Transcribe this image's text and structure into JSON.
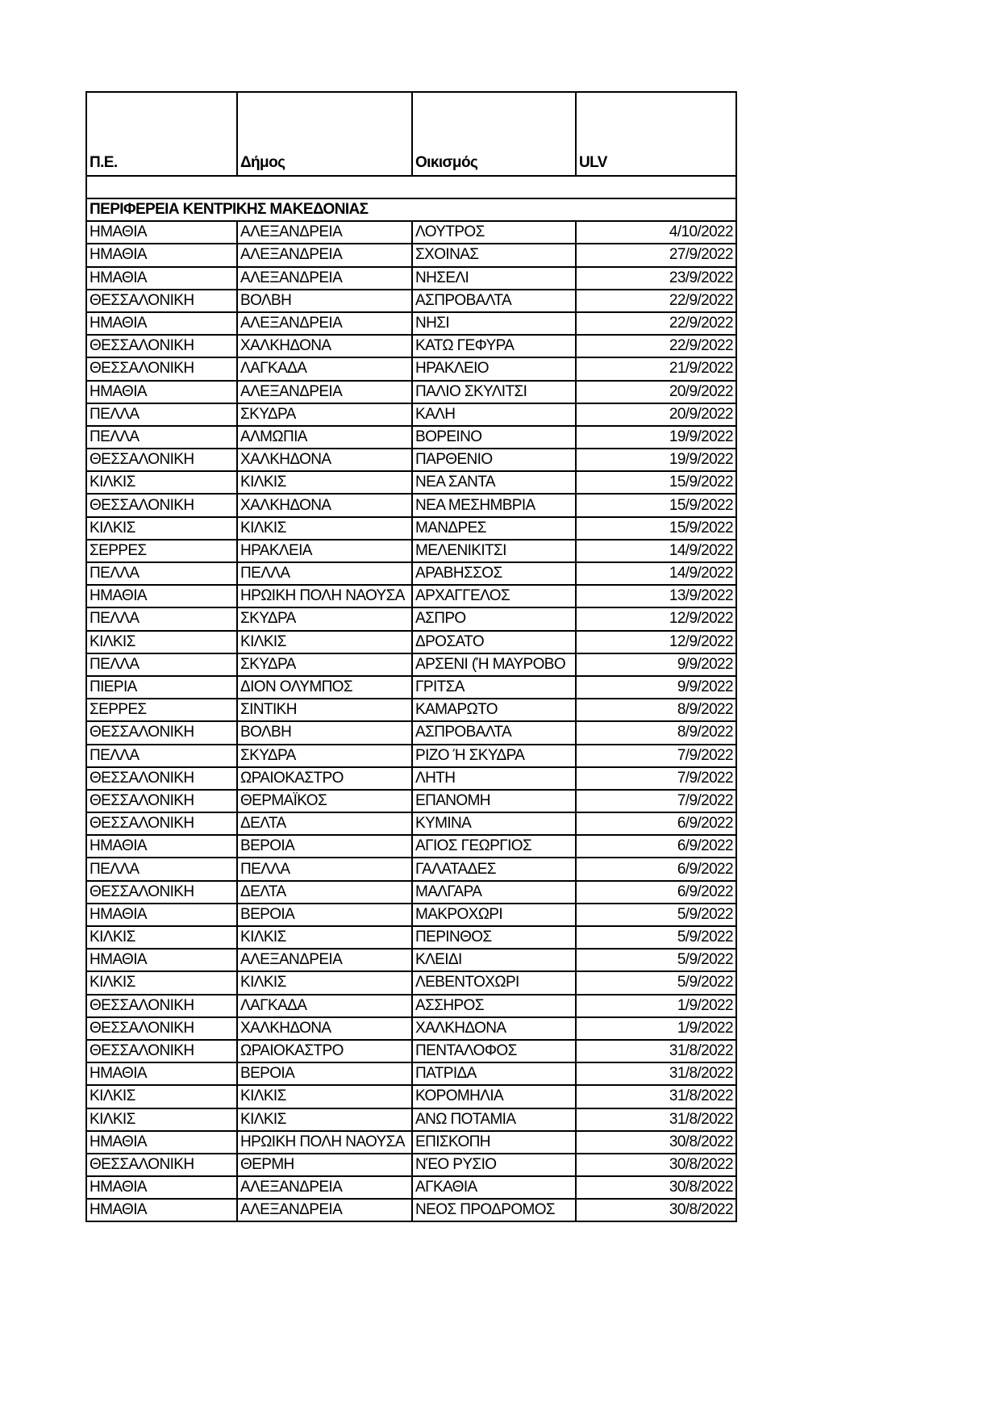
{
  "headers": [
    "Π.Ε.",
    "Δήμος",
    "Οικισμός",
    "ULV"
  ],
  "region": "ΠΕΡΙΦΕΡΕΙΑ ΚΕΝΤΡΙΚΗΣ ΜΑΚΕΔΟΝΙΑΣ",
  "rows": [
    [
      "ΗΜΑΘΙΑ",
      "ΑΛΕΞΑΝΔΡΕΙΑ",
      "ΛΟΥΤΡΟΣ",
      "4/10/2022"
    ],
    [
      "ΗΜΑΘΙΑ",
      "ΑΛΕΞΑΝΔΡΕΙΑ",
      "ΣΧΟΙΝΑΣ",
      "27/9/2022"
    ],
    [
      "ΗΜΑΘΙΑ",
      "ΑΛΕΞΑΝΔΡΕΙΑ",
      "ΝΗΣΕΛΙ",
      "23/9/2022"
    ],
    [
      "ΘΕΣΣΑΛΟΝΙΚΗ",
      "ΒΟΛΒΗ",
      "ΑΣΠΡΟΒΑΛΤΑ",
      "22/9/2022"
    ],
    [
      "ΗΜΑΘΙΑ",
      "ΑΛΕΞΑΝΔΡΕΙΑ",
      "ΝΗΣΙ",
      "22/9/2022"
    ],
    [
      "ΘΕΣΣΑΛΟΝΙΚΗ",
      "ΧΑΛΚΗΔΟΝΑ",
      "ΚΑΤΩ ΓΕΦΥΡΑ",
      "22/9/2022"
    ],
    [
      "ΘΕΣΣΑΛΟΝΙΚΗ",
      "ΛΑΓΚΑΔΑ",
      "ΗΡΑΚΛΕΙΟ",
      "21/9/2022"
    ],
    [
      "ΗΜΑΘΙΑ",
      "ΑΛΕΞΑΝΔΡΕΙΑ",
      "ΠΑΛΙΟ ΣΚΥΛΙΤΣΙ",
      "20/9/2022"
    ],
    [
      "ΠΕΛΛΑ",
      "ΣΚΥΔΡΑ",
      "ΚΑΛΗ",
      "20/9/2022"
    ],
    [
      "ΠΕΛΛΑ",
      "ΑΛΜΩΠΙΑ",
      "ΒΟΡΕΙΝΟ",
      "19/9/2022"
    ],
    [
      "ΘΕΣΣΑΛΟΝΙΚΗ",
      "ΧΑΛΚΗΔΟΝΑ",
      "ΠΑΡΘΕΝΙΟ",
      "19/9/2022"
    ],
    [
      "ΚΙΛΚΙΣ",
      "ΚΙΛΚΙΣ",
      "ΝΕΑ ΣΑΝΤΑ",
      "15/9/2022"
    ],
    [
      "ΘΕΣΣΑΛΟΝΙΚΗ",
      "ΧΑΛΚΗΔΟΝΑ",
      "ΝΕΑ ΜΕΣΗΜΒΡΙΑ",
      "15/9/2022"
    ],
    [
      "ΚΙΛΚΙΣ",
      "ΚΙΛΚΙΣ",
      "ΜΑΝΔΡΕΣ",
      "15/9/2022"
    ],
    [
      "ΣΕΡΡΕΣ",
      "ΗΡΑΚΛΕΙΑ",
      "ΜΕΛΕΝΙΚΙΤΣΙ",
      "14/9/2022"
    ],
    [
      "ΠΕΛΛΑ",
      "ΠΕΛΛΑ",
      "ΑΡΑΒΗΣΣΟΣ",
      "14/9/2022"
    ],
    [
      "ΗΜΑΘΙΑ",
      "ΗΡΩΙΚΗ ΠΟΛΗ ΝΑΟΥΣΑ",
      "ΑΡΧΑΓΓΕΛΟΣ",
      "13/9/2022"
    ],
    [
      "ΠΕΛΛΑ",
      "ΣΚΥΔΡΑ",
      "ΑΣΠΡΟ",
      "12/9/2022"
    ],
    [
      "ΚΙΛΚΙΣ",
      "ΚΙΛΚΙΣ",
      "ΔΡΟΣΑΤΟ",
      "12/9/2022"
    ],
    [
      "ΠΕΛΛΑ",
      "ΣΚΥΔΡΑ",
      "ΑΡΣΕΝΙ (Ή ΜΑΥΡΟΒΟ",
      "9/9/2022"
    ],
    [
      "ΠΙΕΡΙΑ",
      "ΔΙΟΝ ΟΛΥΜΠΟΣ",
      "ΓΡΙΤΣΑ",
      "9/9/2022"
    ],
    [
      "ΣΕΡΡΕΣ",
      "ΣΙΝΤΙΚΗ",
      "ΚΑΜΑΡΩΤΟ",
      "8/9/2022"
    ],
    [
      "ΘΕΣΣΑΛΟΝΙΚΗ",
      "ΒΟΛΒΗ",
      "ΑΣΠΡΟΒΑΛΤΑ",
      "8/9/2022"
    ],
    [
      "ΠΕΛΛΑ",
      "ΣΚΥΔΡΑ",
      "ΡΙΖΟ Ή ΣΚΥΔΡΑ",
      "7/9/2022"
    ],
    [
      "ΘΕΣΣΑΛΟΝΙΚΗ",
      "ΩΡΑΙΟΚΑΣΤΡΟ",
      "ΛΗΤΗ",
      "7/9/2022"
    ],
    [
      "ΘΕΣΣΑΛΟΝΙΚΗ",
      "ΘΕΡΜΑΪΚΟΣ",
      "ΕΠΑΝΟΜΗ",
      "7/9/2022"
    ],
    [
      "ΘΕΣΣΑΛΟΝΙΚΗ",
      "ΔΕΛΤΑ",
      "ΚΥΜΙΝΑ",
      "6/9/2022"
    ],
    [
      "ΗΜΑΘΙΑ",
      "ΒΕΡΟΙΑ",
      "ΑΓΙΟΣ ΓΕΩΡΓΙΟΣ",
      "6/9/2022"
    ],
    [
      "ΠΕΛΛΑ",
      "ΠΕΛΛΑ",
      "ΓΑΛΑΤΑΔΕΣ",
      "6/9/2022"
    ],
    [
      "ΘΕΣΣΑΛΟΝΙΚΗ",
      "ΔΕΛΤΑ",
      "ΜΑΛΓΑΡΑ",
      "6/9/2022"
    ],
    [
      "ΗΜΑΘΙΑ",
      "ΒΕΡΟΙΑ",
      "ΜΑΚΡΟΧΩΡΙ",
      "5/9/2022"
    ],
    [
      "ΚΙΛΚΙΣ",
      "ΚΙΛΚΙΣ",
      "ΠΕΡΙΝΘΟΣ",
      "5/9/2022"
    ],
    [
      "ΗΜΑΘΙΑ",
      "ΑΛΕΞΑΝΔΡΕΙΑ",
      "ΚΛΕΙΔΙ",
      "5/9/2022"
    ],
    [
      "ΚΙΛΚΙΣ",
      "ΚΙΛΚΙΣ",
      "ΛΕΒΕΝΤΟΧΩΡΙ",
      "5/9/2022"
    ],
    [
      "ΘΕΣΣΑΛΟΝΙΚΗ",
      "ΛΑΓΚΑΔΑ",
      "ΑΣΣΗΡΟΣ",
      "1/9/2022"
    ],
    [
      "ΘΕΣΣΑΛΟΝΙΚΗ",
      "ΧΑΛΚΗΔΟΝΑ",
      "ΧΑΛΚΗΔΟΝΑ",
      "1/9/2022"
    ],
    [
      "ΘΕΣΣΑΛΟΝΙΚΗ",
      "ΩΡΑΙΟΚΑΣΤΡΟ",
      "ΠΕΝΤΑΛΟΦΟΣ",
      "31/8/2022"
    ],
    [
      "ΗΜΑΘΙΑ",
      "ΒΕΡΟΙΑ",
      "ΠΑΤΡΙΔΑ",
      "31/8/2022"
    ],
    [
      "ΚΙΛΚΙΣ",
      "ΚΙΛΚΙΣ",
      "ΚΟΡΟΜΗΛΙΑ",
      "31/8/2022"
    ],
    [
      "ΚΙΛΚΙΣ",
      "ΚΙΛΚΙΣ",
      "ΑΝΩ ΠΟΤΑΜΙΑ",
      "31/8/2022"
    ],
    [
      "ΗΜΑΘΙΑ",
      "ΗΡΩΙΚΗ ΠΟΛΗ ΝΑΟΥΣΑ",
      "ΕΠΙΣΚΟΠΗ",
      "30/8/2022"
    ],
    [
      "ΘΕΣΣΑΛΟΝΙΚΗ",
      "ΘΕΡΜΗ",
      "ΝΈΟ ΡΥΣΙΟ",
      "30/8/2022"
    ],
    [
      "ΗΜΑΘΙΑ",
      "ΑΛΕΞΑΝΔΡΕΙΑ",
      "ΑΓΚΑΘΙΑ",
      "30/8/2022"
    ],
    [
      "ΗΜΑΘΙΑ",
      "ΑΛΕΞΑΝΔΡΕΙΑ",
      "ΝΕΟΣ ΠΡΟΔΡΟΜΟΣ",
      "30/8/2022"
    ]
  ]
}
